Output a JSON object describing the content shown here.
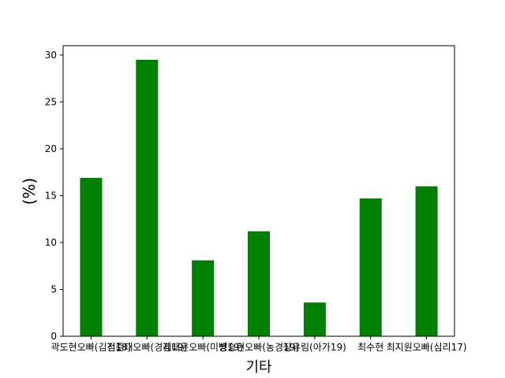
{
  "chart_data": {
    "type": "bar",
    "categories": [
      "곽도현오빠(김전18)",
      "김준태오빠(경제19)",
      "김태윤오빠(미생19)",
      "방승현오빠(농경19)",
      "장유림(아가19)",
      "최수현",
      "최지원오빠(심리17)"
    ],
    "values": [
      16.9,
      29.5,
      8.1,
      11.2,
      3.6,
      14.7,
      16.0
    ],
    "xlabel": "기타",
    "ylabel": "(%)",
    "ylim": [
      0,
      31
    ],
    "yticks": [
      0,
      5,
      10,
      15,
      20,
      25,
      30
    ],
    "bar_color": "#008000",
    "grid": false
  }
}
